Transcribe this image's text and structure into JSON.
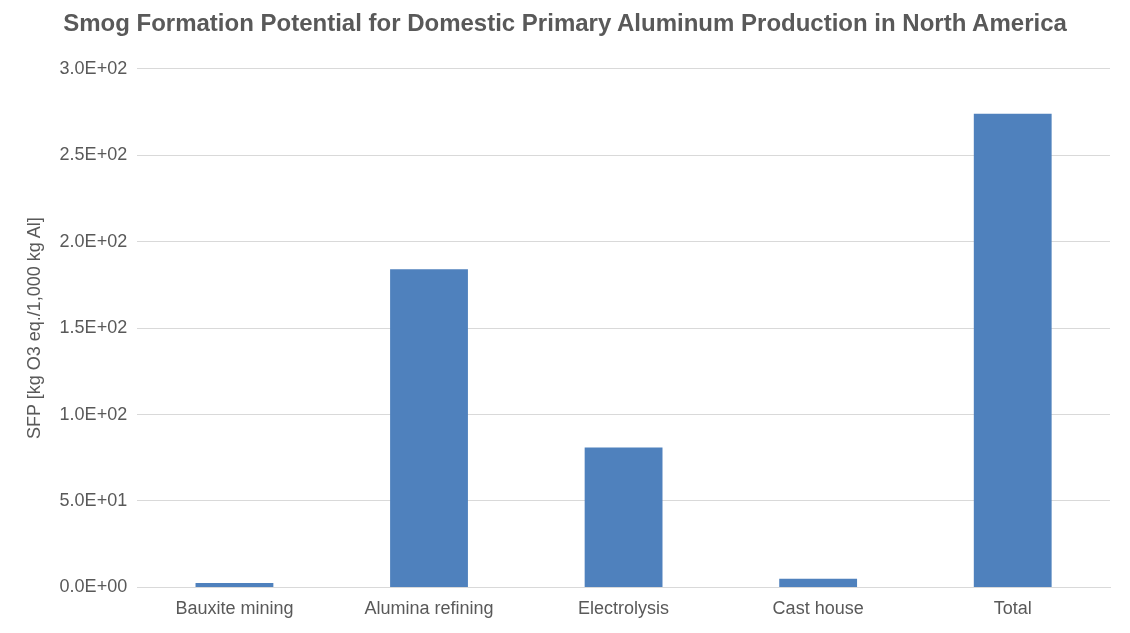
{
  "chart_data": {
    "type": "bar",
    "title": "Smog Formation Potential for Domestic Primary Aluminum Production in North America",
    "ylabel": "SFP [kg O3 eq./1,000 kg Al]",
    "categories": [
      "Bauxite mining",
      "Alumina refining",
      "Electrolysis",
      "Cast house",
      "Total"
    ],
    "values": [
      2.5,
      184,
      81,
      5,
      274
    ],
    "color": "#4f81bd",
    "ylim": [
      0,
      300
    ],
    "yticks": [
      {
        "value": 0,
        "label": "0.0E+00"
      },
      {
        "value": 50,
        "label": "5.0E+01"
      },
      {
        "value": 100,
        "label": "1.0E+02"
      },
      {
        "value": 150,
        "label": "1.5E+02"
      },
      {
        "value": 200,
        "label": "2.0E+02"
      },
      {
        "value": 250,
        "label": "2.5E+02"
      },
      {
        "value": 300,
        "label": "3.0E+02"
      }
    ],
    "grid": "y"
  }
}
